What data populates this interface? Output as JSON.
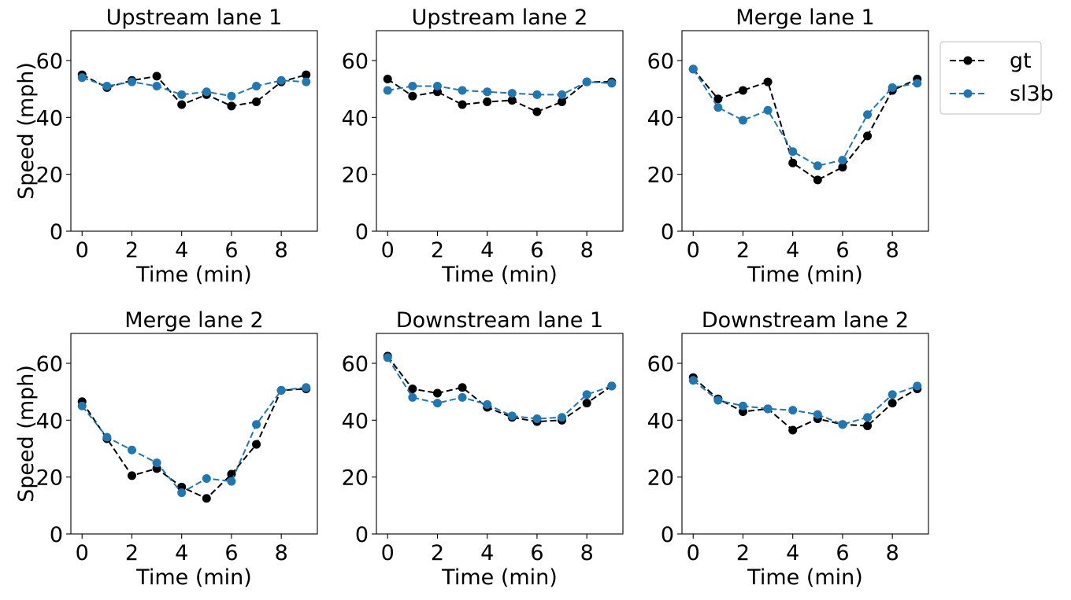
{
  "chart_data": [
    {
      "type": "line",
      "title": "Upstream lane 1",
      "xlabel": "Time (min)",
      "ylabel": "Speed (mph)",
      "x": [
        0,
        1,
        2,
        3,
        4,
        5,
        6,
        7,
        8,
        9
      ],
      "xticks": [
        0,
        2,
        4,
        6,
        8
      ],
      "yticks": [
        0,
        20,
        40,
        60
      ],
      "xlim": [
        -0.45,
        9.45
      ],
      "ylim": [
        0,
        70.5
      ],
      "series": [
        {
          "name": "gt",
          "values": [
            55,
            50.5,
            53,
            54.5,
            44.5,
            48,
            44,
            45.5,
            52.5,
            55
          ],
          "color": "#000000"
        },
        {
          "name": "sl3b",
          "values": [
            54,
            51,
            52.5,
            51,
            48,
            49,
            47.5,
            51,
            53,
            52.5
          ],
          "color": "#1f77b4"
        }
      ]
    },
    {
      "type": "line",
      "title": "Upstream lane 2",
      "xlabel": "Time (min)",
      "ylabel": "",
      "x": [
        0,
        1,
        2,
        3,
        4,
        5,
        6,
        7,
        8,
        9
      ],
      "xticks": [
        0,
        2,
        4,
        6,
        8
      ],
      "yticks": [
        0,
        20,
        40,
        60
      ],
      "xlim": [
        -0.45,
        9.45
      ],
      "ylim": [
        0,
        70.5
      ],
      "series": [
        {
          "name": "gt",
          "values": [
            53.5,
            47.5,
            49,
            44.5,
            45.5,
            46,
            42,
            45.5,
            52.5,
            52.5
          ],
          "color": "#000000"
        },
        {
          "name": "sl3b",
          "values": [
            49.5,
            51,
            51,
            49.5,
            49,
            48.5,
            48,
            48,
            52.5,
            52
          ],
          "color": "#1f77b4"
        }
      ]
    },
    {
      "type": "line",
      "title": "Merge lane 1",
      "xlabel": "Time (min)",
      "ylabel": "",
      "x": [
        0,
        1,
        2,
        3,
        4,
        5,
        6,
        7,
        8,
        9
      ],
      "xticks": [
        0,
        2,
        4,
        6,
        8
      ],
      "yticks": [
        0,
        20,
        40,
        60
      ],
      "xlim": [
        -0.45,
        9.45
      ],
      "ylim": [
        0,
        70.5
      ],
      "series": [
        {
          "name": "gt",
          "values": [
            57,
            46.5,
            49.5,
            52.5,
            24,
            18,
            22.5,
            33.5,
            49.5,
            53.5
          ],
          "color": "#000000"
        },
        {
          "name": "sl3b",
          "values": [
            57,
            43.5,
            39,
            42.5,
            28,
            23,
            25,
            41,
            50.5,
            52
          ],
          "color": "#1f77b4"
        }
      ]
    },
    {
      "type": "line",
      "title": "Merge lane 2",
      "xlabel": "Time (min)",
      "ylabel": "Speed (mph)",
      "x": [
        0,
        1,
        2,
        3,
        4,
        5,
        6,
        7,
        8,
        9
      ],
      "xticks": [
        0,
        2,
        4,
        6,
        8
      ],
      "yticks": [
        0,
        20,
        40,
        60
      ],
      "xlim": [
        -0.45,
        9.45
      ],
      "ylim": [
        0,
        70.5
      ],
      "series": [
        {
          "name": "gt",
          "values": [
            46.5,
            33.5,
            20.5,
            23,
            16.5,
            12.5,
            21,
            31.5,
            50.5,
            51
          ],
          "color": "#000000"
        },
        {
          "name": "sl3b",
          "values": [
            45,
            34,
            29.5,
            25,
            14.5,
            19.5,
            18.5,
            38.5,
            50.5,
            51.5
          ],
          "color": "#1f77b4"
        }
      ]
    },
    {
      "type": "line",
      "title": "Downstream lane 1",
      "xlabel": "Time (min)",
      "ylabel": "",
      "x": [
        0,
        1,
        2,
        3,
        4,
        5,
        6,
        7,
        8,
        9
      ],
      "xticks": [
        0,
        2,
        4,
        6,
        8
      ],
      "yticks": [
        0,
        20,
        40,
        60
      ],
      "xlim": [
        -0.45,
        9.45
      ],
      "ylim": [
        0,
        70.5
      ],
      "series": [
        {
          "name": "gt",
          "values": [
            62.5,
            51,
            49.5,
            51.5,
            44.5,
            41,
            39.5,
            40,
            46,
            52
          ],
          "color": "#000000"
        },
        {
          "name": "sl3b",
          "values": [
            62,
            48,
            46,
            48,
            45.5,
            41.5,
            40.5,
            41,
            49,
            52
          ],
          "color": "#1f77b4"
        }
      ]
    },
    {
      "type": "line",
      "title": "Downstream lane 2",
      "xlabel": "Time (min)",
      "ylabel": "",
      "x": [
        0,
        1,
        2,
        3,
        4,
        5,
        6,
        7,
        8,
        9
      ],
      "xticks": [
        0,
        2,
        4,
        6,
        8
      ],
      "yticks": [
        0,
        20,
        40,
        60
      ],
      "xlim": [
        -0.45,
        9.45
      ],
      "ylim": [
        0,
        70.5
      ],
      "series": [
        {
          "name": "gt",
          "values": [
            55,
            47.5,
            43,
            44,
            36.5,
            40.5,
            38.5,
            38,
            46,
            51
          ],
          "color": "#000000"
        },
        {
          "name": "sl3b",
          "values": [
            54,
            47,
            45,
            44,
            43.5,
            42,
            38.5,
            41,
            49,
            52
          ],
          "color": "#1f77b4"
        }
      ]
    }
  ],
  "legend": {
    "position": "upper-right, outside",
    "entries": [
      {
        "label": "gt",
        "color": "#000000"
      },
      {
        "label": "sl3b",
        "color": "#1f77b4"
      }
    ]
  }
}
